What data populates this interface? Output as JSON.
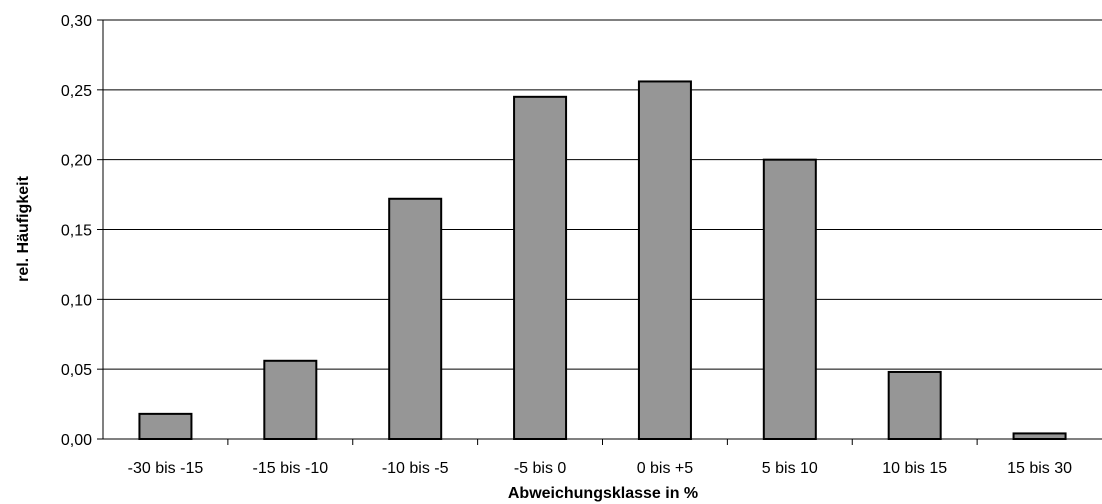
{
  "chart_data": {
    "type": "bar",
    "categories": [
      "-30 bis -15",
      "-15 bis -10",
      "-10 bis -5",
      "-5 bis 0",
      "0 bis +5",
      "5 bis 10",
      "10 bis 15",
      "15 bis 30"
    ],
    "values": [
      0.018,
      0.056,
      0.172,
      0.245,
      0.256,
      0.2,
      0.048,
      0.004
    ],
    "xlabel": "Abweichungsklasse in %",
    "ylabel": "rel. Häufigkeit",
    "ylim": [
      0,
      0.3
    ],
    "yticks": [
      "0,00",
      "0,05",
      "0,10",
      "0,15",
      "0,20",
      "0,25",
      "0,30"
    ],
    "grid": true,
    "bar_color": "#969696"
  }
}
